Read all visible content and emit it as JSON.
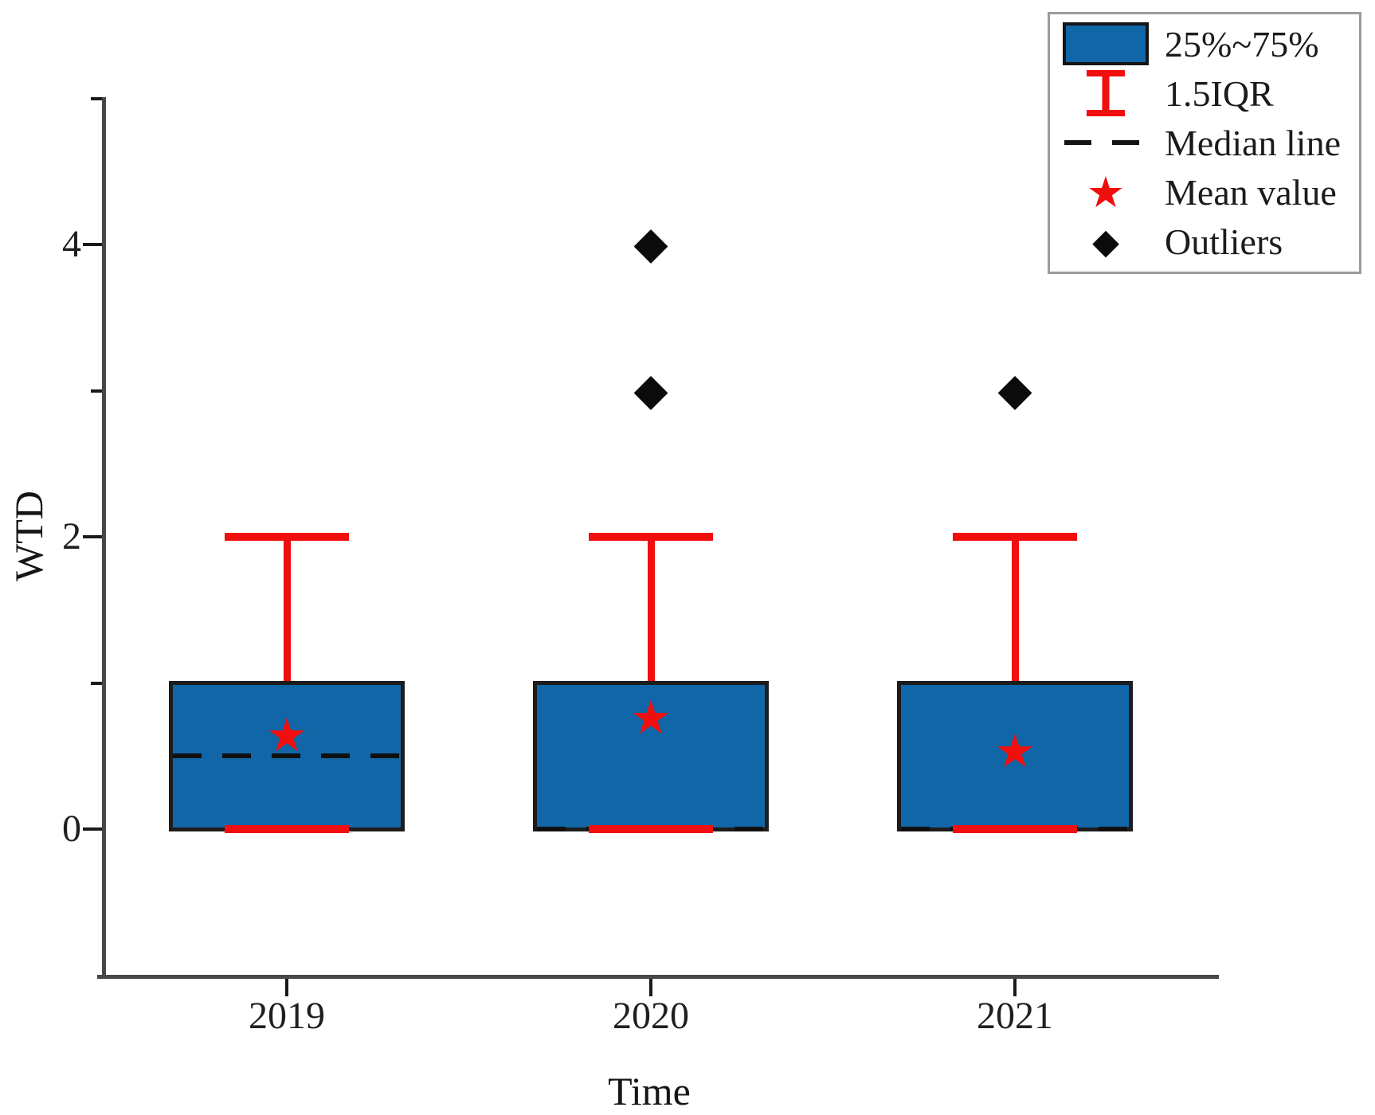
{
  "chart_data": {
    "type": "box",
    "title": "",
    "xlabel": "Time",
    "ylabel": "WTD",
    "ylim": [
      -1,
      5
    ],
    "y_major_ticks": [
      0,
      2,
      4
    ],
    "y_minor_ticks": [
      1,
      3,
      5
    ],
    "grid": false,
    "legend_position": "top-right",
    "categories": [
      "2019",
      "2020",
      "2021"
    ],
    "boxes": [
      {
        "category": "2019",
        "q1": 0,
        "median": 0.5,
        "q3": 1,
        "whisker_low": 0,
        "whisker_high": 2,
        "mean": 0.64,
        "outliers": []
      },
      {
        "category": "2020",
        "q1": 0,
        "median": 0,
        "q3": 1,
        "whisker_low": 0,
        "whisker_high": 2,
        "mean": 0.76,
        "outliers": [
          3,
          4
        ]
      },
      {
        "category": "2021",
        "q1": 0,
        "median": 0,
        "q3": 1,
        "whisker_low": 0,
        "whisker_high": 2,
        "mean": 0.53,
        "outliers": [
          3
        ]
      }
    ]
  },
  "legend": {
    "items": [
      {
        "label": "25%~75%",
        "glyph": "box-swatch-icon"
      },
      {
        "label": "1.5IQR",
        "glyph": "whisker-icon"
      },
      {
        "label": "Median line",
        "glyph": "dashed-line-icon"
      },
      {
        "label": "Mean value",
        "glyph": "star-icon"
      },
      {
        "label": "Outliers",
        "glyph": "diamond-icon"
      }
    ]
  },
  "icons": {
    "star": "★",
    "diamond": "◆"
  },
  "colors": {
    "box_fill": "#1166a8",
    "box_border": "#1c1c1c",
    "whisker": "#f10e0e",
    "mean_marker": "#f10e0e",
    "outlier": "#0b0b0b",
    "median": "#101010",
    "axis": "#474747",
    "tick": "#1a1a1a"
  }
}
